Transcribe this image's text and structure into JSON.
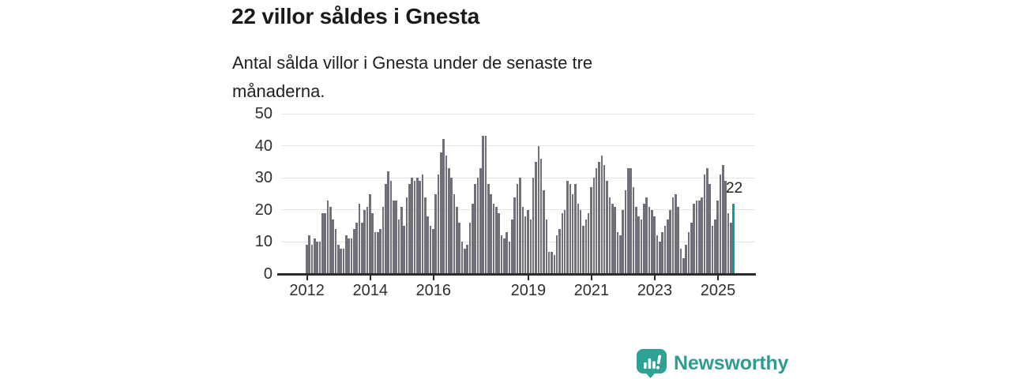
{
  "header": {
    "title": "22 villor såldes i Gnesta",
    "subtitle": "Antal sålda villor i Gnesta under de senaste tre\nmånaderna."
  },
  "annotation": {
    "label": "22"
  },
  "footer": {
    "brand": "Newsworthy",
    "logo_icon": "newsworthy-speech-bubble-bar-chart-icon",
    "brand_color": "#2e9c8f"
  },
  "chart_data": {
    "type": "bar",
    "title": "22 villor såldes i Gnesta",
    "subtitle": "Antal sålda villor i Gnesta under de senaste tre månaderna.",
    "x_frequency": "monthly",
    "x_start": "2012-01",
    "x_end": "2025-07",
    "start_year": 2012,
    "values": [
      9,
      12,
      9,
      11,
      10,
      10,
      19,
      19,
      23,
      21,
      17,
      14,
      9,
      8,
      8,
      12,
      11,
      11,
      14,
      16,
      22,
      16,
      20,
      21,
      25,
      19,
      13,
      13,
      14,
      21,
      28,
      32,
      29,
      23,
      23,
      17,
      21,
      15,
      24,
      28,
      30,
      29,
      30,
      29,
      31,
      24,
      18,
      15,
      14,
      25,
      31,
      38,
      42,
      37,
      33,
      30,
      25,
      21,
      16,
      10,
      8,
      9,
      16,
      22,
      28,
      30,
      33,
      43,
      43,
      28,
      25,
      22,
      21,
      19,
      12,
      11,
      13,
      10,
      17,
      24,
      28,
      30,
      21,
      18,
      20,
      17,
      30,
      35,
      40,
      36,
      26,
      17,
      7,
      7,
      6,
      12,
      14,
      19,
      20,
      29,
      28,
      25,
      28,
      22,
      20,
      15,
      17,
      19,
      27,
      30,
      33,
      35,
      37,
      34,
      29,
      24,
      22,
      21,
      13,
      12,
      20,
      26,
      33,
      33,
      27,
      21,
      18,
      17,
      22,
      24,
      21,
      20,
      18,
      12,
      10,
      13,
      15,
      17,
      20,
      24,
      25,
      21,
      8,
      5,
      9,
      13,
      16,
      22,
      23,
      23,
      24,
      31,
      33,
      28,
      15,
      17,
      23,
      31,
      34,
      29,
      19,
      16,
      22
    ],
    "highlight_last": true,
    "highlight_value": 22,
    "highlight_label": "22",
    "ylim": [
      0,
      50
    ],
    "y_ticks": [
      0,
      10,
      20,
      30,
      40,
      50
    ],
    "x_tick_years": [
      2012,
      2014,
      2016,
      2019,
      2021,
      2023,
      2025
    ],
    "grid": true,
    "legend": "none",
    "bar_color": "#70707a",
    "highlight_color": "#00a39b",
    "grid_color": "#e3e3e3",
    "axis_color": "#2b2b2b"
  }
}
